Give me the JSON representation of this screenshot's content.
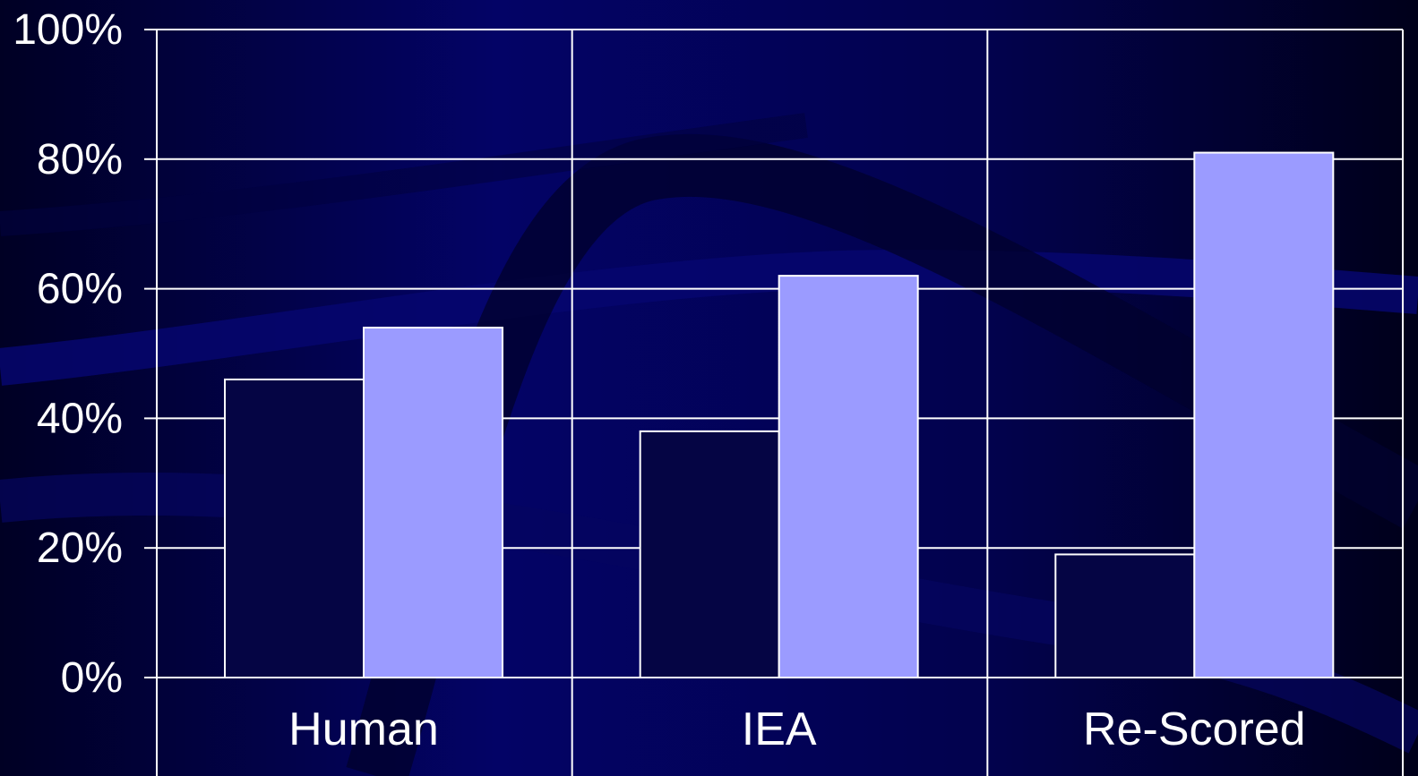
{
  "chart_data": {
    "type": "bar",
    "categories": [
      "Human",
      "IEA",
      "Re-Scored"
    ],
    "series": [
      {
        "values": [
          46,
          38,
          19
        ],
        "color": "#050544"
      },
      {
        "values": [
          54,
          62,
          81
        ],
        "color": "#9b9bff"
      }
    ],
    "y_ticks": [
      "0%",
      "20%",
      "40%",
      "60%",
      "80%",
      "100%"
    ],
    "ylim": [
      0,
      100
    ],
    "grid": true,
    "title": "",
    "xlabel": "",
    "ylabel": ""
  }
}
